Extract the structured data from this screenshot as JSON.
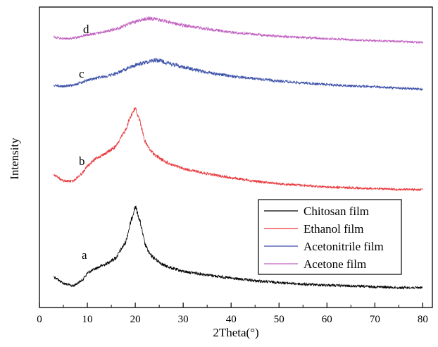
{
  "chart_data": {
    "type": "line",
    "xlabel": "2Theta(°)",
    "ylabel": "Intensity",
    "xlim": [
      0,
      82
    ],
    "x_ticks": [
      0,
      10,
      20,
      30,
      40,
      50,
      60,
      70,
      80
    ],
    "y_ticks_shown": false,
    "grid": false,
    "legend_position": "bottom-right",
    "x": [
      3,
      5,
      7,
      9,
      10,
      12,
      14,
      16,
      18,
      19,
      20,
      21,
      22,
      23,
      24,
      25,
      26,
      28,
      30,
      35,
      40,
      45,
      50,
      55,
      60,
      65,
      70,
      75,
      80
    ],
    "series": [
      {
        "name": "Chitosan film",
        "label": "a",
        "color": "#000000",
        "values": [
          0.18,
          0.1,
          0.07,
          0.14,
          0.22,
          0.28,
          0.33,
          0.4,
          0.58,
          0.8,
          1.0,
          0.82,
          0.56,
          0.44,
          0.39,
          0.35,
          0.31,
          0.27,
          0.24,
          0.2,
          0.16,
          0.13,
          0.11,
          0.09,
          0.08,
          0.07,
          0.06,
          0.05,
          0.05
        ]
      },
      {
        "name": "Ethanol film",
        "label": "b",
        "color": "#e8383d",
        "values": [
          0.2,
          0.12,
          0.12,
          0.22,
          0.3,
          0.4,
          0.46,
          0.54,
          0.74,
          0.9,
          1.0,
          0.84,
          0.6,
          0.5,
          0.44,
          0.4,
          0.36,
          0.31,
          0.27,
          0.21,
          0.16,
          0.12,
          0.09,
          0.07,
          0.05,
          0.04,
          0.03,
          0.02,
          0.02
        ]
      },
      {
        "name": "Acetonitrile film",
        "label": "c",
        "color": "#3a4fa8",
        "values": [
          0.22,
          0.18,
          0.22,
          0.32,
          0.38,
          0.44,
          0.5,
          0.58,
          0.72,
          0.78,
          0.84,
          0.88,
          0.92,
          0.96,
          1.0,
          0.98,
          0.94,
          0.86,
          0.78,
          0.62,
          0.5,
          0.42,
          0.35,
          0.29,
          0.24,
          0.2,
          0.17,
          0.13,
          0.1
        ]
      },
      {
        "name": "Acetone film",
        "label": "d",
        "color": "#c060c0",
        "values": [
          0.3,
          0.24,
          0.26,
          0.34,
          0.38,
          0.44,
          0.52,
          0.6,
          0.74,
          0.82,
          0.88,
          0.94,
          0.98,
          1.0,
          0.98,
          0.94,
          0.9,
          0.82,
          0.74,
          0.6,
          0.48,
          0.4,
          0.33,
          0.28,
          0.24,
          0.2,
          0.17,
          0.14,
          0.1
        ]
      }
    ]
  }
}
